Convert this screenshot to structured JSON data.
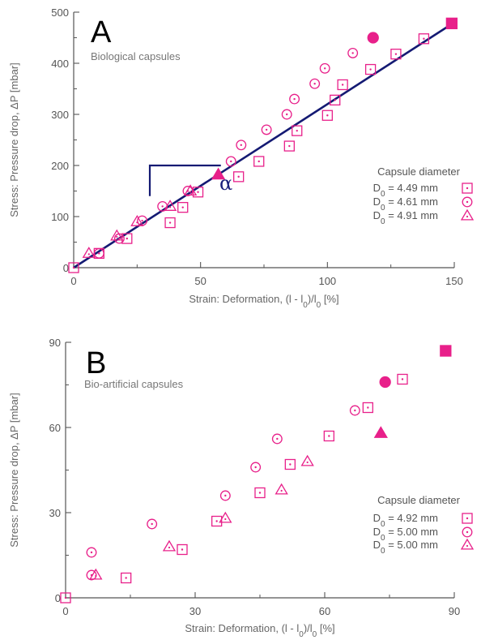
{
  "accent_color": "#e8208a",
  "line_color": "#141a73",
  "chart_data": [
    {
      "type": "scatter",
      "panel_letter": "A",
      "subtitle": "Biological capsules",
      "ylabel_parts": [
        "Stress: Pressure drop, ",
        "Δ",
        "P [mbar]"
      ],
      "xlabel_parts": [
        "Strain: Deformation, (l - l",
        "0",
        ")/l",
        "0",
        " [%]"
      ],
      "xlim": [
        0,
        150
      ],
      "ylim": [
        0,
        500
      ],
      "x_ticks": [
        0,
        50,
        100,
        150
      ],
      "y_ticks": [
        0,
        100,
        200,
        300,
        400,
        500
      ],
      "x_tick_labels": [
        "0",
        "50",
        "100",
        "150"
      ],
      "y_tick_labels": [
        "0",
        "100",
        "200",
        "300",
        "400",
        "500"
      ],
      "legend": {
        "title": "Capsule diameter",
        "entries": [
          {
            "prefix": "D",
            "sub": "0",
            "text": " = 4.49 mm",
            "marker": "square"
          },
          {
            "prefix": "D",
            "sub": "0",
            "text": " = 4.61 mm",
            "marker": "circle"
          },
          {
            "prefix": "D",
            "sub": "0",
            "text": " = 4.91 mm",
            "marker": "triangle"
          }
        ]
      },
      "fit_line": {
        "x": [
          0,
          150
        ],
        "y": [
          0,
          480
        ]
      },
      "slope_triangle": {
        "x0": 30,
        "x1": 58,
        "y0": 140,
        "y1": 200,
        "label": "α"
      },
      "series": [
        {
          "marker": "square",
          "x": [
            0,
            10,
            21,
            38,
            43,
            49,
            65,
            73,
            85,
            88,
            100,
            103,
            106,
            117,
            127,
            138
          ],
          "y": [
            0,
            28,
            57,
            88,
            118,
            148,
            178,
            208,
            238,
            268,
            298,
            328,
            358,
            388,
            418,
            448
          ]
        },
        {
          "marker": "circle",
          "x": [
            10,
            18,
            27,
            35,
            45,
            62,
            66,
            76,
            84,
            87,
            95,
            99,
            110
          ],
          "y": [
            28,
            57,
            92,
            120,
            150,
            208,
            240,
            270,
            300,
            330,
            360,
            390,
            420
          ]
        },
        {
          "marker": "triangle",
          "x": [
            6,
            17,
            25,
            38,
            46
          ],
          "y": [
            28,
            62,
            90,
            120,
            150
          ]
        }
      ],
      "filled_points": [
        {
          "marker": "square",
          "x": 149,
          "y": 478
        },
        {
          "marker": "circle",
          "x": 118,
          "y": 450
        },
        {
          "marker": "triangle",
          "x": 57,
          "y": 182
        }
      ]
    },
    {
      "type": "scatter",
      "panel_letter": "B",
      "subtitle": "Bio-artificial capsules",
      "ylabel_parts": [
        "Stress: Pressure drop, ",
        "Δ",
        "P [mbar]"
      ],
      "xlabel_parts": [
        "Strain: Deformation, (l - l",
        "0",
        ")/l",
        "0",
        " [%]"
      ],
      "xlim": [
        0,
        90
      ],
      "ylim": [
        0,
        90
      ],
      "x_ticks": [
        0,
        30,
        60,
        90
      ],
      "y_ticks": [
        0,
        30,
        60,
        90
      ],
      "x_tick_labels": [
        "0",
        "30",
        "60",
        "90"
      ],
      "y_tick_labels": [
        "0",
        "30",
        "60",
        "90"
      ],
      "legend": {
        "title": "Capsule diameter",
        "entries": [
          {
            "prefix": "D",
            "sub": "0",
            "text": " = 4.92 mm",
            "marker": "square"
          },
          {
            "prefix": "D",
            "sub": "0",
            "text": " = 5.00 mm",
            "marker": "circle"
          },
          {
            "prefix": "D",
            "sub": "0",
            "text": " = 5.00 mm",
            "marker": "triangle"
          }
        ]
      },
      "series": [
        {
          "marker": "square",
          "x": [
            0,
            14,
            27,
            35,
            45,
            52,
            61,
            70,
            78
          ],
          "y": [
            0,
            7,
            17,
            27,
            37,
            47,
            57,
            67,
            77
          ]
        },
        {
          "marker": "circle",
          "x": [
            6,
            6,
            20,
            37,
            44,
            49,
            67
          ],
          "y": [
            8,
            16,
            26,
            36,
            46,
            56,
            66
          ]
        },
        {
          "marker": "triangle",
          "x": [
            7,
            24,
            37,
            50,
            56
          ],
          "y": [
            8,
            18,
            28,
            38,
            48
          ]
        }
      ],
      "filled_points": [
        {
          "marker": "square",
          "x": 88,
          "y": 87
        },
        {
          "marker": "circle",
          "x": 74,
          "y": 76
        },
        {
          "marker": "triangle",
          "x": 73,
          "y": 58
        }
      ]
    }
  ]
}
